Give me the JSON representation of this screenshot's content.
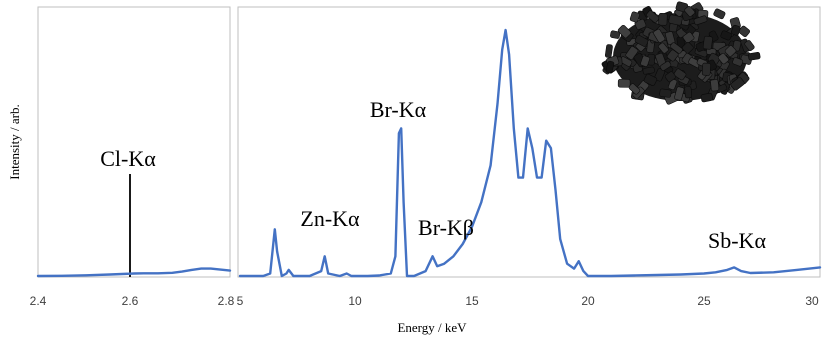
{
  "chart_data": [
    {
      "type": "line",
      "ylabel": "Intensity / arb.",
      "xlim": [
        2.4,
        2.8
      ],
      "x_ticks": [
        "2.4",
        "2.6",
        "2.8"
      ],
      "grid": false,
      "series": [
        {
          "x": [
            2.4,
            2.45,
            2.5,
            2.55,
            2.6,
            2.62,
            2.65,
            2.68,
            2.7,
            2.72,
            2.74,
            2.76,
            2.78,
            2.8
          ],
          "y": [
            0.0,
            0.001,
            0.003,
            0.006,
            0.01,
            0.011,
            0.011,
            0.013,
            0.018,
            0.025,
            0.03,
            0.03,
            0.026,
            0.022
          ]
        }
      ],
      "annotations": [
        {
          "text": "Cl-Kα",
          "x": 2.6,
          "marker": "vertical-line"
        }
      ]
    },
    {
      "type": "line",
      "xlabel": "Energy / keV",
      "xlim": [
        5,
        30
      ],
      "x_ticks": [
        "5",
        "10",
        "15",
        "20",
        "25",
        "30"
      ],
      "grid": false,
      "series": [
        {
          "x": [
            5.0,
            6.0,
            6.3,
            6.5,
            6.6,
            6.8,
            7.0,
            7.1,
            7.3,
            8.0,
            8.5,
            8.65,
            8.8,
            9.3,
            9.6,
            9.8,
            10.5,
            11.0,
            11.5,
            11.7,
            11.85,
            11.95,
            12.05,
            12.2,
            12.5,
            13.0,
            13.3,
            13.5,
            13.8,
            14.2,
            14.6,
            15.0,
            15.4,
            15.8,
            16.1,
            16.3,
            16.45,
            16.6,
            16.8,
            17.0,
            17.2,
            17.4,
            17.6,
            17.8,
            18.0,
            18.2,
            18.4,
            18.6,
            18.8,
            19.1,
            19.4,
            19.6,
            19.8,
            20.0,
            20.5,
            21.0,
            22.0,
            23.0,
            24.0,
            25.0,
            25.5,
            26.0,
            26.3,
            26.6,
            27.0,
            28.0,
            29.0,
            30.0
          ],
          "y": [
            0.0,
            0.0,
            0.01,
            0.19,
            0.1,
            0.0,
            0.01,
            0.025,
            0.0,
            0.0,
            0.02,
            0.08,
            0.01,
            0.0,
            0.01,
            0.0,
            0.0,
            0.002,
            0.01,
            0.08,
            0.58,
            0.6,
            0.3,
            0.0,
            0.0,
            0.02,
            0.08,
            0.04,
            0.05,
            0.08,
            0.13,
            0.2,
            0.3,
            0.45,
            0.7,
            0.92,
            1.0,
            0.9,
            0.6,
            0.4,
            0.4,
            0.6,
            0.52,
            0.4,
            0.4,
            0.55,
            0.52,
            0.35,
            0.15,
            0.05,
            0.03,
            0.06,
            0.02,
            0.0,
            0.0,
            0.0,
            0.002,
            0.004,
            0.006,
            0.01,
            0.015,
            0.025,
            0.035,
            0.02,
            0.012,
            0.015,
            0.025,
            0.035
          ]
        }
      ],
      "annotations": [
        {
          "text": "Zn-Kα",
          "x": 8.6
        },
        {
          "text": "Br-Kα",
          "x": 11.9
        },
        {
          "text": "Br-Kβ",
          "x": 13.3
        },
        {
          "text": "Sb-Kα",
          "x": 26.3
        }
      ]
    }
  ],
  "colors": {
    "series": "#4472c4",
    "frame": "#bfbfbf",
    "pellets": "#1c1c1c"
  },
  "inset_image": "black-plastic-pellets-photo"
}
